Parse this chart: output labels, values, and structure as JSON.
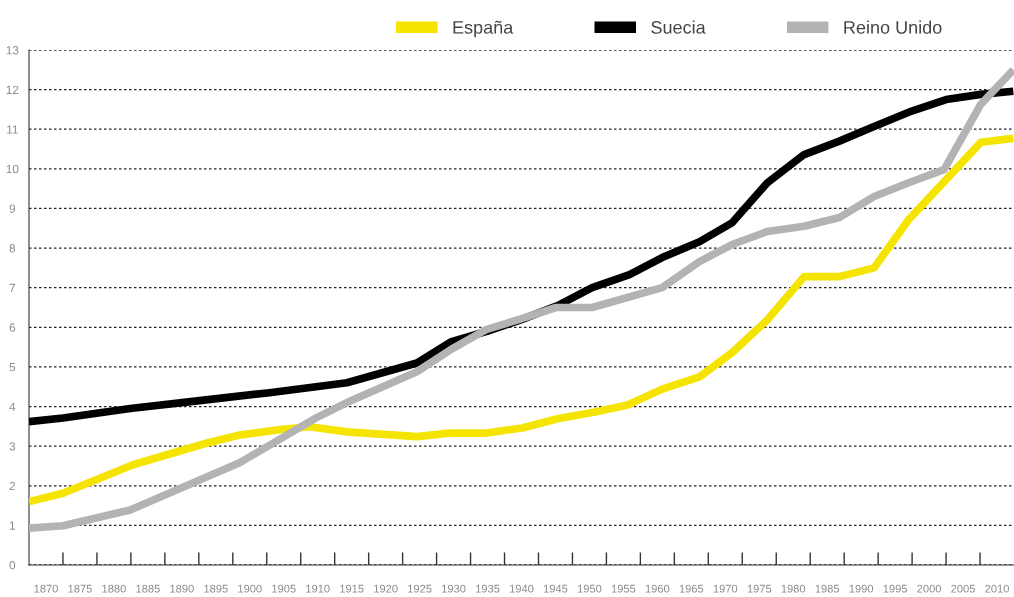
{
  "chart_data": {
    "type": "line",
    "xlim": [
      1867.5,
      2012.5
    ],
    "ylim": [
      0,
      13
    ],
    "yticks": [
      0,
      1,
      2,
      3,
      4,
      5,
      6,
      7,
      8,
      9,
      10,
      11,
      12,
      13
    ],
    "xticks": [
      {
        "value": 1870,
        "label": "1870"
      },
      {
        "value": 1875,
        "label": "1875"
      },
      {
        "value": 1880,
        "label": "1880"
      },
      {
        "value": 1885,
        "label": "1885"
      },
      {
        "value": 1890,
        "label": "1890"
      },
      {
        "value": 1895,
        "label": "1895"
      },
      {
        "value": 1900,
        "label": "1900"
      },
      {
        "value": 1905,
        "label": "1905"
      },
      {
        "value": 1910,
        "label": "1910"
      },
      {
        "value": 1915,
        "label": "1915"
      },
      {
        "value": 1920,
        "label": "1920"
      },
      {
        "value": 1925,
        "label": "1925"
      },
      {
        "value": 1930,
        "label": "1930"
      },
      {
        "value": 1935,
        "label": "1935"
      },
      {
        "value": 1940,
        "label": "1940"
      },
      {
        "value": 1945,
        "label": "1945"
      },
      {
        "value": 1950,
        "label": "1950"
      },
      {
        "value": 1955,
        "label": "1955"
      },
      {
        "value": 1960,
        "label": "1960"
      },
      {
        "value": 1965,
        "label": "1965"
      },
      {
        "value": 1970,
        "label": "1970"
      },
      {
        "value": 1975,
        "label": "1975"
      },
      {
        "value": 1980,
        "label": "1980"
      },
      {
        "value": 1985,
        "label": "1985"
      },
      {
        "value": 1990,
        "label": "1990"
      },
      {
        "value": 1995,
        "label": "1995"
      },
      {
        "value": 2000,
        "label": "2000"
      },
      {
        "value": 2005,
        "label": "2005"
      },
      {
        "value": 2010,
        "label": "2010"
      },
      {
        "value": 1872.5,
        "label": null
      },
      {
        "value": 1877.5,
        "label": null
      },
      {
        "value": 1882.5,
        "label": null
      },
      {
        "value": 1887.5,
        "label": null
      },
      {
        "value": 1892.5,
        "label": null
      },
      {
        "value": 1897.5,
        "label": null
      },
      {
        "value": 1902.5,
        "label": null
      },
      {
        "value": 1907.5,
        "label": null
      },
      {
        "value": 1912.5,
        "label": null
      },
      {
        "value": 1917.5,
        "label": null
      },
      {
        "value": 1922.5,
        "label": null
      },
      {
        "value": 1927.5,
        "label": null
      },
      {
        "value": 1932.5,
        "label": null
      },
      {
        "value": 1937.5,
        "label": null
      },
      {
        "value": 1942.5,
        "label": null
      },
      {
        "value": 1947.5,
        "label": null
      },
      {
        "value": 1952.5,
        "label": null
      },
      {
        "value": 1957.5,
        "label": null
      },
      {
        "value": 1962.5,
        "label": null
      },
      {
        "value": 1967.5,
        "label": null
      },
      {
        "value": 1972.5,
        "label": null
      },
      {
        "value": 1977.5,
        "label": null
      },
      {
        "value": 1982.5,
        "label": null
      },
      {
        "value": 1987.5,
        "label": null
      },
      {
        "value": 1992.5,
        "label": null
      },
      {
        "value": 1997.5,
        "label": null
      },
      {
        "value": 2002.5,
        "label": null
      },
      {
        "value": 2007.5,
        "label": null
      }
    ],
    "grid": "y",
    "legend": "top right",
    "line_style": "solid",
    "marker": "none",
    "series": [
      {
        "name": "España",
        "color": "#f5e400",
        "x": [
          1867.5,
          1872.5,
          1882.8,
          1893.7,
          1898.5,
          1904,
          1908.8,
          1914.3,
          1924.6,
          1929.4,
          1934.9,
          1940.1,
          1945.3,
          1951,
          1955.6,
          1960.7,
          1966.2,
          1971,
          1976.2,
          1981.6,
          1986.8,
          1991.9,
          1997,
          2002.5,
          2007.6,
          2012.4
        ],
        "values": [
          1.6,
          1.81,
          2.53,
          3.08,
          3.28,
          3.41,
          3.49,
          3.36,
          3.24,
          3.33,
          3.33,
          3.46,
          3.69,
          3.87,
          4.04,
          4.44,
          4.75,
          5.36,
          6.19,
          7.28,
          7.28,
          7.5,
          8.72,
          9.73,
          10.67,
          10.77
        ]
      },
      {
        "name": "Suecia",
        "color": "#000000",
        "x": [
          1867.5,
          1872.5,
          1882.4,
          1892.6,
          1902.9,
          1914.3,
          1924.6,
          1929.7,
          1934.9,
          1940.1,
          1945.6,
          1950.4,
          1955.9,
          1960.7,
          1966.2,
          1971,
          1976.2,
          1981.6,
          1986.8,
          1991.9,
          1997,
          2002.5,
          2007.6,
          2012.4
        ],
        "values": [
          3.62,
          3.71,
          3.95,
          4.15,
          4.35,
          4.6,
          5.1,
          5.64,
          5.9,
          6.2,
          6.57,
          7.0,
          7.33,
          7.76,
          8.16,
          8.64,
          9.65,
          10.36,
          10.7,
          11.07,
          11.43,
          11.75,
          11.88,
          11.96
        ]
      },
      {
        "name": "Reino Unido",
        "color": "#b3b3b3",
        "x": [
          1867.5,
          1872.5,
          1882.4,
          1898.5,
          1909.6,
          1914.3,
          1924.6,
          1929.7,
          1934.9,
          1939.7,
          1945.1,
          1950.4,
          1960.7,
          1966.2,
          1971,
          1976.2,
          1981.6,
          1986.8,
          1991.9,
          1997,
          2002.2,
          2007.6,
          2012.4
        ],
        "values": [
          0.93,
          0.99,
          1.39,
          2.58,
          3.7,
          4.1,
          4.88,
          5.45,
          5.95,
          6.2,
          6.5,
          6.5,
          7.0,
          7.66,
          8.09,
          8.42,
          8.55,
          8.77,
          9.3,
          9.65,
          9.98,
          11.63,
          12.5
        ]
      }
    ]
  }
}
